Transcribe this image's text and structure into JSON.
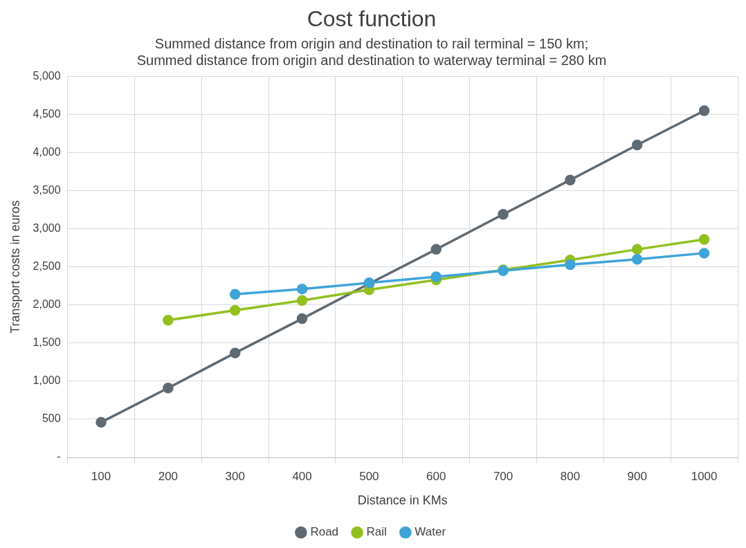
{
  "chart_data": {
    "type": "line",
    "title": "Cost function",
    "subtitle": "Summed distance from origin and destination to rail terminal = 150 km;\nSummed distance from origin and destination to waterway terminal = 280 km",
    "xlabel": "Distance in KMs",
    "ylabel": "Transport costs in euros",
    "categories": [
      "100",
      "200",
      "300",
      "400",
      "500",
      "600",
      "700",
      "800",
      "900",
      "1000"
    ],
    "series": [
      {
        "name": "Road",
        "color": "#5f6b73",
        "values": [
          460,
          910,
          1370,
          1820,
          2280,
          2730,
          3190,
          3640,
          4100,
          4550
        ]
      },
      {
        "name": "Rail",
        "color": "#92c01f",
        "values": [
          null,
          1800,
          1930,
          2060,
          2200,
          2330,
          2460,
          2590,
          2730,
          2860
        ]
      },
      {
        "name": "Water",
        "color": "#3fa4d8",
        "values": [
          null,
          null,
          2140,
          2210,
          2290,
          2370,
          2450,
          2530,
          2600,
          2680
        ]
      }
    ],
    "ylim": [
      0,
      5000
    ],
    "yticks": [
      {
        "value": 0,
        "label": "-"
      },
      500,
      {
        "value": 1000,
        "label": "1,000"
      },
      {
        "value": 1500,
        "label": "1,500"
      },
      {
        "value": 2000,
        "label": "2,000"
      },
      {
        "value": 2500,
        "label": "2,500"
      },
      {
        "value": 3000,
        "label": "3,000"
      },
      {
        "value": 3500,
        "label": "3,500"
      },
      {
        "value": 4000,
        "label": "4,000"
      },
      {
        "value": 4500,
        "label": "4,500"
      },
      {
        "value": 5000,
        "label": "5,000"
      }
    ],
    "grid": true,
    "legend": "bottom",
    "marker": "circle",
    "line_style": "solid"
  }
}
